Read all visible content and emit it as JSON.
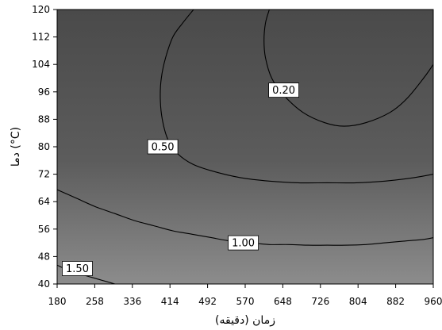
{
  "chart_data": {
    "type": "contour",
    "xlabel": "زمان (دقیقه)",
    "ylabel": "دما (°C)",
    "xlim": [
      180,
      960
    ],
    "ylim": [
      40,
      120
    ],
    "x_ticks": [
      180,
      258,
      336,
      414,
      492,
      570,
      648,
      726,
      804,
      882,
      960
    ],
    "y_ticks": [
      40,
      48,
      56,
      64,
      72,
      80,
      88,
      96,
      104,
      112,
      120
    ],
    "grid": false,
    "colors": {
      "fill_top": "#4a4a4a",
      "fill_bottom": "#8c8c8c",
      "contour_line": "#000000",
      "label_box": "#ffffff"
    },
    "contours": [
      {
        "level": "0.20",
        "label": "0.20",
        "label_at": [
          650,
          96.5
        ],
        "points": [
          [
            620,
            120
          ],
          [
            612,
            116
          ],
          [
            609,
            111
          ],
          [
            612,
            106
          ],
          [
            625,
            100
          ],
          [
            650,
            95
          ],
          [
            690,
            90
          ],
          [
            735,
            87
          ],
          [
            775,
            86
          ],
          [
            820,
            87
          ],
          [
            870,
            90
          ],
          [
            905,
            94
          ],
          [
            940,
            100
          ],
          [
            960,
            104
          ]
        ]
      },
      {
        "level": "0.50",
        "label": "0.50",
        "label_at": [
          399,
          80
        ],
        "points": [
          [
            463,
            120
          ],
          [
            440,
            116
          ],
          [
            420,
            112
          ],
          [
            405,
            106
          ],
          [
            396,
            100
          ],
          [
            394,
            94
          ],
          [
            398,
            88
          ],
          [
            410,
            82
          ],
          [
            430,
            78
          ],
          [
            460,
            75
          ],
          [
            500,
            73
          ],
          [
            560,
            71
          ],
          [
            620,
            70
          ],
          [
            680,
            69.5
          ],
          [
            740,
            69.5
          ],
          [
            800,
            69.5
          ],
          [
            860,
            70
          ],
          [
            920,
            71
          ],
          [
            960,
            72
          ]
        ]
      },
      {
        "level": "1.00",
        "label": "1.00",
        "label_at": [
          566,
          52
        ],
        "points": [
          [
            180,
            67.5
          ],
          [
            220,
            65
          ],
          [
            260,
            62.5
          ],
          [
            300,
            60.5
          ],
          [
            340,
            58.5
          ],
          [
            380,
            57
          ],
          [
            420,
            55.5
          ],
          [
            460,
            54.5
          ],
          [
            500,
            53.5
          ],
          [
            540,
            52.5
          ],
          [
            580,
            52
          ],
          [
            620,
            51.5
          ],
          [
            660,
            51.5
          ],
          [
            700,
            51.3
          ],
          [
            740,
            51.3
          ],
          [
            780,
            51.3
          ],
          [
            820,
            51.5
          ],
          [
            860,
            52
          ],
          [
            900,
            52.5
          ],
          [
            940,
            53
          ],
          [
            960,
            53.5
          ]
        ]
      },
      {
        "level": "1.50",
        "label": "1.50",
        "label_at": [
          222,
          44.5
        ],
        "points": [
          [
            180,
            45.5
          ],
          [
            200,
            44.2
          ],
          [
            220,
            43.2
          ],
          [
            245,
            42.2
          ],
          [
            270,
            41.2
          ],
          [
            300,
            40
          ]
        ]
      }
    ]
  }
}
